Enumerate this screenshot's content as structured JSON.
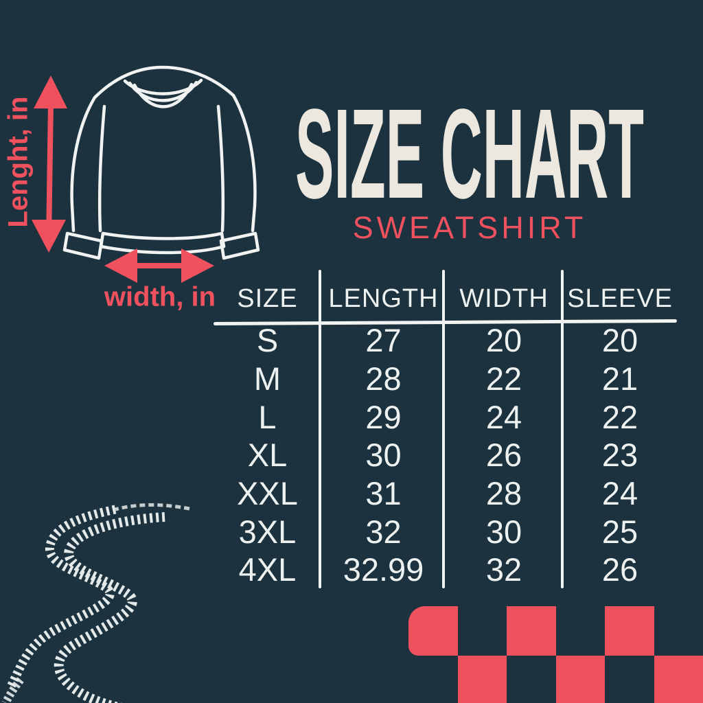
{
  "colors": {
    "background": "#1c323e",
    "accent": "#f0515e",
    "title_cream": "#ece8df",
    "table_text": "#edf1ef",
    "line_white": "#f0f3f1",
    "track_white": "#e3e9e9"
  },
  "header": {
    "title": "SIZE CHART",
    "subtitle": "SWEATSHIRT"
  },
  "diagram": {
    "length_label": "Lenght, in",
    "width_label": "width, in"
  },
  "icons": {
    "garment": "sweatshirt-outline-icon",
    "length_arrow": "double-headed-vertical-arrow-icon",
    "width_arrow": "double-headed-horizontal-arrow-icon",
    "tire_tracks": "tire-tracks-decoration",
    "checkered_flag": "checkered-flag-decoration"
  },
  "chart_data": {
    "type": "table",
    "title": "SIZE CHART",
    "subtitle": "SWEATSHIRT",
    "units": "inches",
    "columns": [
      "SIZE",
      "LENGTH",
      "WIDTH",
      "SLEEVE"
    ],
    "rows": [
      {
        "size": "S",
        "length": "27",
        "width": "20",
        "sleeve": "20"
      },
      {
        "size": "M",
        "length": "28",
        "width": "22",
        "sleeve": "21"
      },
      {
        "size": "L",
        "length": "29",
        "width": "24",
        "sleeve": "22"
      },
      {
        "size": "XL",
        "length": "30",
        "width": "26",
        "sleeve": "23"
      },
      {
        "size": "XXL",
        "length": "31",
        "width": "28",
        "sleeve": "24"
      },
      {
        "size": "3XL",
        "length": "32",
        "width": "30",
        "sleeve": "25"
      },
      {
        "size": "4XL",
        "length": "32.99",
        "width": "32",
        "sleeve": "26"
      }
    ]
  },
  "decor": {
    "checker_pattern": [
      [
        1,
        0,
        1,
        0,
        1,
        0
      ],
      [
        0,
        1,
        0,
        1,
        0,
        1
      ]
    ]
  }
}
